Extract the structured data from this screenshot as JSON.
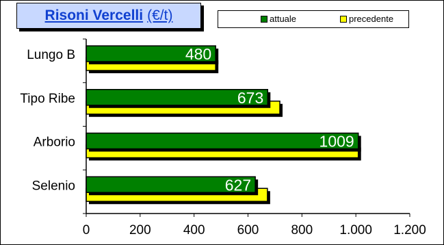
{
  "chart_data": {
    "type": "bar",
    "orientation": "horizontal",
    "title": "Risoni Vercelli",
    "title_unit": "(€/t)",
    "categories": [
      "Lungo B",
      "Tipo Ribe",
      "Arborio",
      "Selenio"
    ],
    "series": [
      {
        "name": "attuale",
        "values": [
          480,
          673,
          1009,
          627
        ],
        "color": "#008000"
      },
      {
        "name": "precedente",
        "values": [
          480,
          718,
          1009,
          672
        ],
        "color": "#ffff00"
      }
    ],
    "data_labels": [
      "480",
      "673",
      "1009",
      "627"
    ],
    "xlim": [
      0,
      1200
    ],
    "xticks": [
      0,
      200,
      400,
      600,
      800,
      1000,
      1200
    ],
    "xtick_labels": [
      "0",
      "200",
      "400",
      "600",
      "800",
      "1.000",
      "1.200"
    ],
    "legend_position": "top-right",
    "grid": false
  },
  "colors": {
    "title_background": "#c8d8ff",
    "title_text": "#1040d0"
  }
}
